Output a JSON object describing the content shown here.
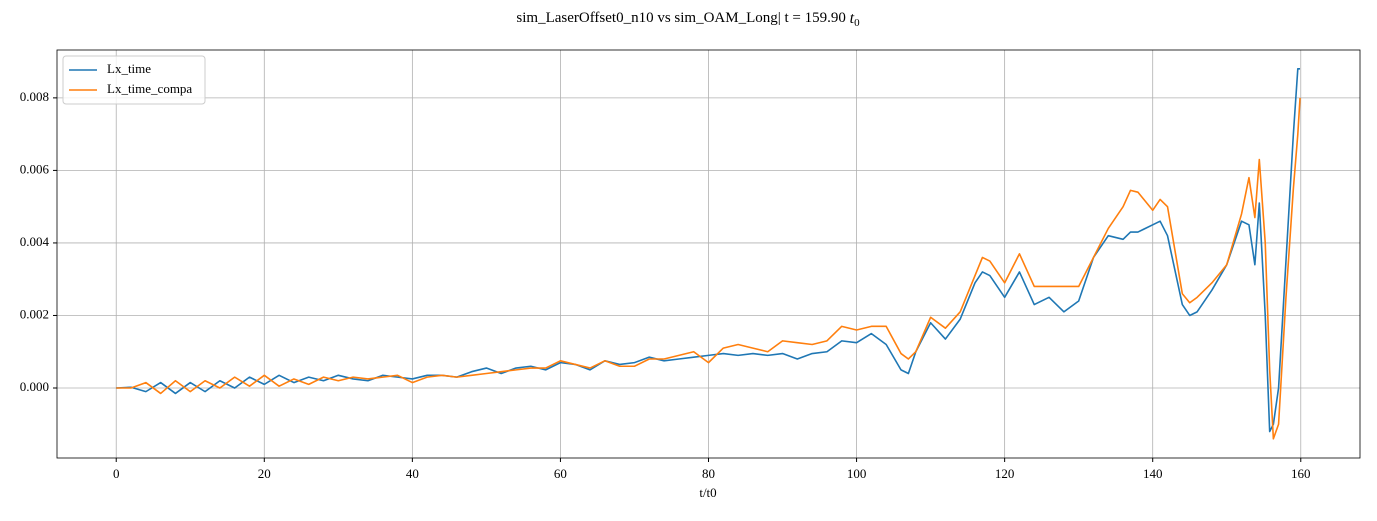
{
  "chart_data": {
    "type": "line",
    "title": "sim_LaserOffset0_n10 vs sim_OAM_Long| t = 159.90",
    "title_symbol": "t",
    "title_subscript": "0",
    "x_label": "t/t0",
    "x": [
      0,
      2,
      4,
      6,
      8,
      10,
      12,
      14,
      16,
      18,
      20,
      22,
      24,
      26,
      28,
      30,
      32,
      34,
      36,
      38,
      40,
      42,
      44,
      46,
      48,
      50,
      52,
      54,
      56,
      58,
      60,
      62,
      64,
      66,
      68,
      70,
      72,
      74,
      76,
      78,
      80,
      82,
      84,
      86,
      88,
      90,
      92,
      94,
      96,
      98,
      100,
      102,
      104,
      106,
      107,
      108,
      110,
      112,
      114,
      116,
      117,
      118,
      120,
      122,
      124,
      126,
      128,
      130,
      132,
      134,
      136,
      137,
      138,
      140,
      141,
      142,
      144,
      145,
      146,
      148,
      150,
      152,
      153,
      153.8,
      154.4,
      155.2,
      155.8,
      156.3,
      157,
      158,
      159,
      159.6,
      159.9
    ],
    "series": [
      {
        "name": "Lx_time",
        "color": "#1f77b4",
        "values": [
          0,
          2e-05,
          -0.0001,
          0.00015,
          -0.00015,
          0.00015,
          -0.0001,
          0.0002,
          0,
          0.0003,
          0.0001,
          0.00035,
          0.00015,
          0.0003,
          0.0002,
          0.00035,
          0.00025,
          0.0002,
          0.00035,
          0.0003,
          0.00025,
          0.00035,
          0.00035,
          0.0003,
          0.00045,
          0.00055,
          0.0004,
          0.00055,
          0.0006,
          0.0005,
          0.0007,
          0.00065,
          0.0005,
          0.00075,
          0.00065,
          0.0007,
          0.00085,
          0.00075,
          0.0008,
          0.00085,
          0.0009,
          0.00095,
          0.0009,
          0.00095,
          0.0009,
          0.00095,
          0.0008,
          0.00095,
          0.001,
          0.0013,
          0.00125,
          0.0015,
          0.0012,
          0.0005,
          0.0004,
          0.001,
          0.0018,
          0.00135,
          0.0019,
          0.0029,
          0.0032,
          0.0031,
          0.0025,
          0.0032,
          0.0023,
          0.0025,
          0.0021,
          0.0024,
          0.0036,
          0.0042,
          0.0041,
          0.0043,
          0.0043,
          0.0045,
          0.0046,
          0.0042,
          0.0023,
          0.002,
          0.0021,
          0.0027,
          0.0034,
          0.0046,
          0.0045,
          0.0034,
          0.0051,
          0.002,
          -0.0012,
          -0.001,
          0,
          0.0035,
          0.007,
          0.0088,
          0.0088
        ]
      },
      {
        "name": "Lx_time_compa",
        "color": "#ff7f0e",
        "values": [
          0,
          0,
          0.00015,
          -0.00015,
          0.0002,
          -0.0001,
          0.0002,
          0,
          0.0003,
          5e-05,
          0.00035,
          5e-05,
          0.00025,
          0.0001,
          0.0003,
          0.0002,
          0.0003,
          0.00025,
          0.0003,
          0.00035,
          0.00015,
          0.0003,
          0.00035,
          0.0003,
          0.00035,
          0.0004,
          0.00045,
          0.0005,
          0.00055,
          0.00055,
          0.00075,
          0.00065,
          0.00055,
          0.00075,
          0.0006,
          0.0006,
          0.0008,
          0.0008,
          0.0009,
          0.001,
          0.0007,
          0.0011,
          0.0012,
          0.0011,
          0.001,
          0.0013,
          0.00125,
          0.0012,
          0.0013,
          0.0017,
          0.0016,
          0.0017,
          0.0017,
          0.00095,
          0.0008,
          0.001,
          0.00195,
          0.00165,
          0.0021,
          0.0031,
          0.0036,
          0.0035,
          0.0029,
          0.0037,
          0.0028,
          0.0028,
          0.0028,
          0.0028,
          0.0036,
          0.0044,
          0.005,
          0.00545,
          0.0054,
          0.0049,
          0.0052,
          0.005,
          0.0026,
          0.00235,
          0.0025,
          0.0029,
          0.0034,
          0.0048,
          0.0058,
          0.0047,
          0.0063,
          0.004,
          0.0005,
          -0.0014,
          -0.001,
          0.0025,
          0.0055,
          0.007,
          0.008
        ]
      }
    ],
    "xlim": [
      -8,
      168
    ],
    "xticks": [
      0,
      20,
      40,
      60,
      80,
      100,
      120,
      140,
      160
    ],
    "ylim": [
      -0.00193,
      0.00932
    ],
    "yticks": [
      {
        "value": 0,
        "label": "0.000"
      },
      {
        "value": 0.002,
        "label": "0.002"
      },
      {
        "value": 0.004,
        "label": "0.004"
      },
      {
        "value": 0.006,
        "label": "0.006"
      },
      {
        "value": 0.008,
        "label": "0.008"
      }
    ],
    "grid": true,
    "legend": "upper-left"
  }
}
